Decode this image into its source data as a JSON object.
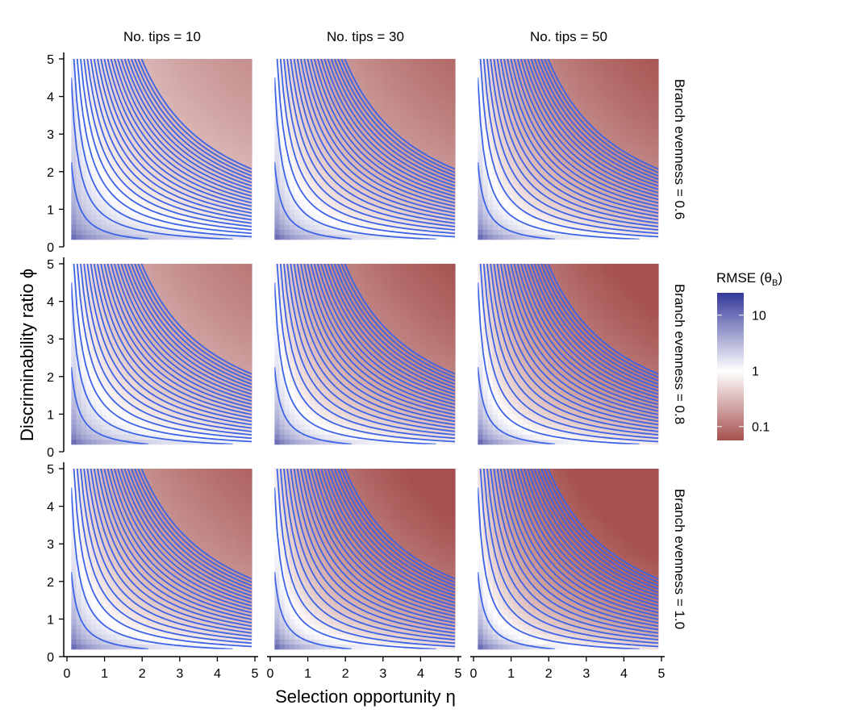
{
  "chart_data": {
    "type": "heatmap",
    "description_note": "Faceted contour heatmaps: fill encodes RMSE(theta_B) on log scale; blue contour lines are level curves of eta*phi",
    "facet_cols": [
      "No. tips = 10",
      "No. tips = 30",
      "No. tips = 50"
    ],
    "facet_rows": [
      "Branch evenness = 0.6",
      "Branch evenness = 0.8",
      "Branch evenness = 1.0"
    ],
    "xlabel": "Selection opportunity  η",
    "ylabel": "Discriminability ratio  ϕ",
    "x_ticks": [
      "0",
      "1",
      "2",
      "3",
      "4",
      "5"
    ],
    "y_ticks": [
      "0",
      "1",
      "2",
      "3",
      "4",
      "5"
    ],
    "x_range": [
      0.2,
      5
    ],
    "y_range": [
      0.2,
      5
    ],
    "contour_levels": [
      0.45,
      0.9,
      1.35,
      1.8,
      2.25,
      2.7,
      3.15,
      3.6,
      4.05,
      4.5,
      4.95,
      5.4,
      5.85,
      6.3,
      6.75,
      7.2,
      7.65,
      8.1,
      8.55,
      9.0,
      9.45,
      9.9,
      10.35
    ],
    "contour_color": "#3d63e6",
    "legend": {
      "title_main": "RMSE (",
      "title_symbol": "θ",
      "title_sub": "B",
      "title_close": ")",
      "ticks": [
        "10",
        "1",
        "0.1"
      ],
      "tick_values": [
        10,
        1,
        0.1
      ],
      "range_log10": [
        -1.25,
        1.4
      ],
      "colors": {
        "high": "#35399a",
        "mid": "#ffffff",
        "low": "#a5514f"
      }
    },
    "fill_model": {
      "form": "log10_rmse = a - b*log10(eta*phi)",
      "params_by_row_col": [
        [
          {
            "a": 0.2,
            "b": 0.72
          },
          {
            "a": 0.08,
            "b": 0.82
          },
          {
            "a": 0.02,
            "b": 0.88
          }
        ],
        [
          {
            "a": 0.12,
            "b": 0.78
          },
          {
            "a": 0.0,
            "b": 0.88
          },
          {
            "a": -0.05,
            "b": 0.94
          }
        ],
        [
          {
            "a": 0.06,
            "b": 0.84
          },
          {
            "a": -0.06,
            "b": 0.94
          },
          {
            "a": -0.12,
            "b": 1.0
          }
        ]
      ]
    }
  }
}
